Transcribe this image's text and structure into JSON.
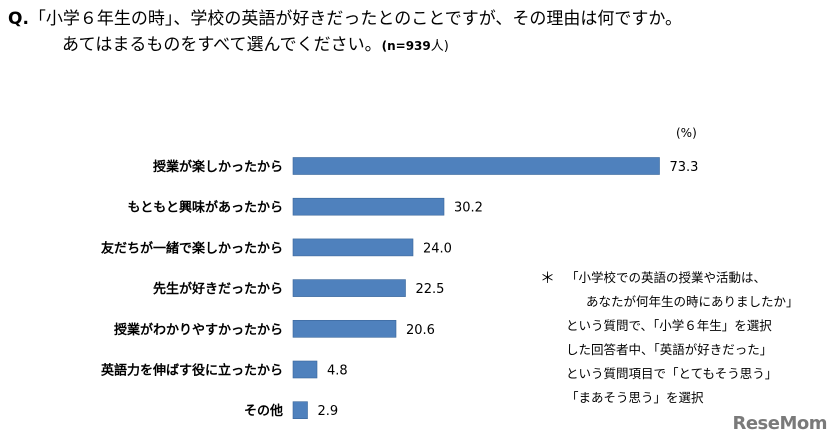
{
  "question": {
    "prefix": "Q.",
    "line1": "「小学６年生の時」、学校の英語が好きだったとのことですが、その理由は何ですか。",
    "line2": "あてはまるものをすべて選んでください。",
    "n_label": "(n=939",
    "n_unit": "人)"
  },
  "chart_data": {
    "type": "bar",
    "orientation": "horizontal",
    "unit": "(%)",
    "categories": [
      "授業が楽しかったから",
      "もともと興味があったから",
      "友だちが一緒で楽しかったから",
      "先生が好きだったから",
      "授業がわかりやすかったから",
      "英語力を伸ばす役に立ったから",
      "その他"
    ],
    "values": [
      73.3,
      30.2,
      24.0,
      22.5,
      20.6,
      4.8,
      2.9
    ],
    "value_labels": [
      "73.3",
      "30.2",
      "24.0",
      "22.5",
      "20.6",
      "4.8",
      "2.9"
    ],
    "xlim": [
      0,
      100
    ],
    "bar_color": "#4f81bd",
    "grid": false,
    "legend": "none"
  },
  "note": {
    "star": "＊",
    "lines": [
      "「小学校での英語の授業や活動は、",
      "あなたが何年生の時にありましたか」",
      "という質問で、「小学６年生」を選択",
      "した回答者中、「英語が好きだった」",
      "という質問項目で「とてもそう思う」",
      "「まあそう思う」を選択"
    ]
  },
  "logo": "ReseMom"
}
